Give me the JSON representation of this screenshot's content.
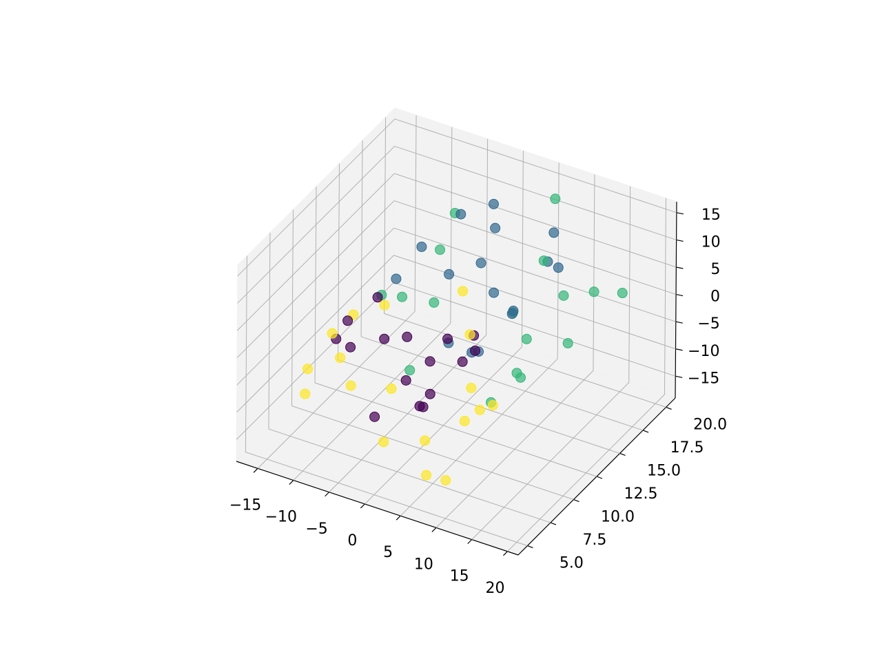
{
  "chart_data": {
    "type": "scatter3d",
    "xlim": [
      -18,
      21.5
    ],
    "ylim": [
      4,
      21
    ],
    "zlim": [
      -19,
      17
    ],
    "xticks": [
      {
        "value": -15,
        "label": "−15"
      },
      {
        "value": -10,
        "label": "−10"
      },
      {
        "value": -5,
        "label": "−5"
      },
      0,
      5,
      10,
      15,
      20
    ],
    "yticks": [
      {
        "value": 5,
        "label": "5.0"
      },
      {
        "value": 7.5,
        "label": "7.5"
      },
      {
        "value": 10,
        "label": "10.0"
      },
      {
        "value": 12.5,
        "label": "12.5"
      },
      {
        "value": 15,
        "label": "15.0"
      },
      {
        "value": 17.5,
        "label": "17.5"
      },
      {
        "value": 20,
        "label": "20.0"
      }
    ],
    "zticks": [
      {
        "value": -15,
        "label": "−15"
      },
      {
        "value": -10,
        "label": "−10"
      },
      {
        "value": -5,
        "label": "−5"
      },
      0,
      5,
      10,
      15
    ],
    "grid": true,
    "series": [
      {
        "color": "#440154",
        "x": [
          0,
          3.9,
          6.3,
          5.0,
          0,
          -6.1,
          -7.7,
          5.5,
          6.1,
          1.9,
          -2.8,
          0,
          6.3,
          5.0,
          -6.1,
          3.9
        ],
        "y": [
          5,
          8,
          5,
          9,
          6,
          10,
          8,
          6,
          11,
          7,
          4.5,
          11,
          11,
          4.5,
          5.5,
          11.5
        ],
        "z": [
          -4.7,
          -3.9,
          0,
          5.0,
          7.9,
          6.1,
          4.5,
          -2.2,
          2.7,
          7.4,
          7.7,
          -4.7,
          0,
          5.0,
          6.1,
          -3.9
        ]
      },
      {
        "color": "#31688e",
        "x": [
          0,
          3.9,
          6.3,
          5.0,
          0,
          -6.1,
          -7.7,
          5.5,
          6.1,
          1.9,
          -2.8,
          3.9,
          5.0,
          -6.1,
          0,
          6.3
        ],
        "y": [
          13,
          17,
          20,
          14,
          18,
          12,
          16,
          12,
          19,
          15,
          20,
          12.5,
          20.5,
          19,
          13,
          15
        ],
        "z": [
          -4.7,
          -3.9,
          0,
          5.0,
          7.9,
          6.1,
          4.5,
          -2.2,
          2.7,
          7.4,
          7.7,
          -3.9,
          5.0,
          6.1,
          7.9,
          0
        ]
      },
      {
        "color": "#35b779",
        "x": [
          -9.4,
          -7.2,
          0,
          8.3,
          12.6,
          9.4,
          0,
          -8.2,
          -9.1,
          -4.1,
          4.5,
          11.4,
          12.2,
          5.8,
          14,
          6,
          9
        ],
        "y": [
          13,
          17,
          20,
          14,
          19,
          16,
          12,
          20,
          15,
          12,
          18,
          12,
          16,
          20,
          21,
          13,
          19
        ],
        "z": [
          0,
          -7.2,
          -11,
          -8.3,
          0,
          9.4,
          14.1,
          3.7,
          -3.6,
          -9.8,
          -10.5,
          -4.4,
          4.2,
          12.4,
          -3,
          -13,
          -11
        ]
      },
      {
        "color": "#fde725",
        "x": [
          -9.4,
          -7.2,
          0,
          8.3,
          12.6,
          9.4,
          0,
          -8.2,
          -9.1,
          -4.1,
          4.5,
          11.4,
          12.2,
          5.8,
          6,
          10,
          -10,
          -6
        ],
        "y": [
          5,
          8,
          6,
          10,
          5,
          8,
          6,
          9,
          4.5,
          10,
          7,
          9,
          6,
          10,
          6,
          5,
          9,
          5
        ],
        "z": [
          0,
          -7.2,
          -11,
          -8.3,
          0,
          9.4,
          14.1,
          3.7,
          -3.6,
          -9.8,
          -10.5,
          -4.4,
          4.2,
          12.4,
          -14.5,
          -12,
          -5,
          8
        ]
      }
    ]
  }
}
